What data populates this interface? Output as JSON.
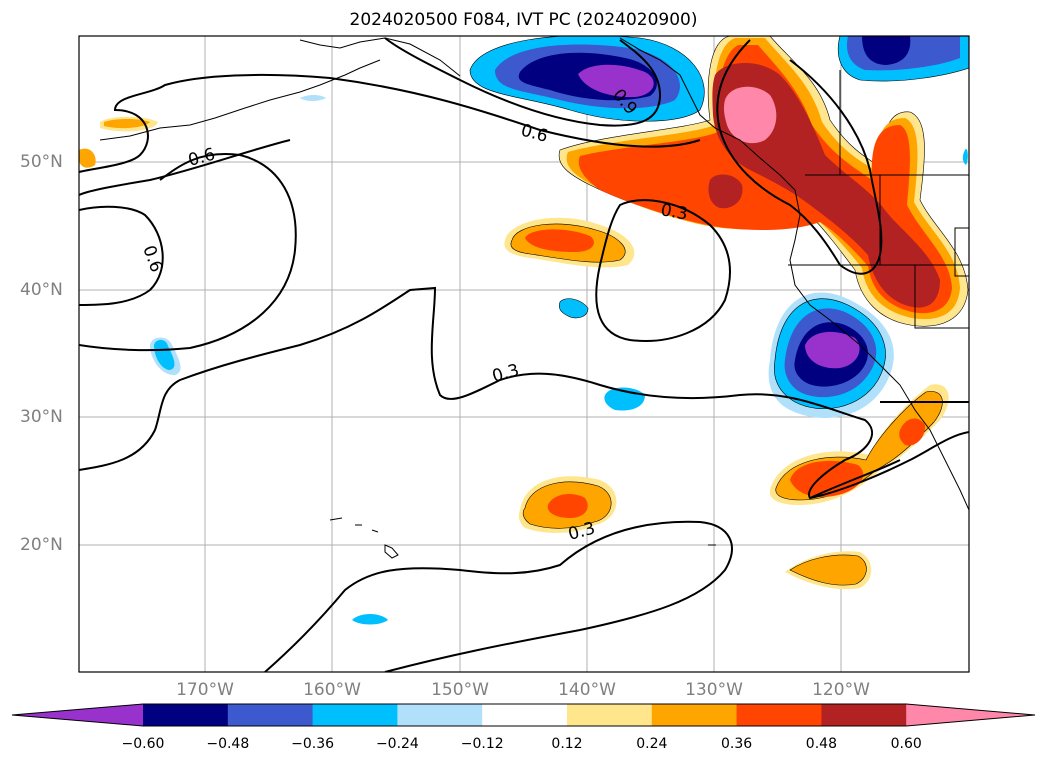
{
  "title": "2024020500 F084, IVT PC (2024020900)",
  "lat_labels": [
    "50°N",
    "40°N",
    "30°N",
    "20°N"
  ],
  "lon_labels": [
    "170°W",
    "160°W",
    "150°W",
    "140°W",
    "130°W",
    "120°W"
  ],
  "colorbar": {
    "ticks": [
      "−0.60",
      "−0.48",
      "−0.36",
      "−0.24",
      "−0.12",
      "0.12",
      "0.24",
      "0.36",
      "0.48",
      "0.60"
    ],
    "colors": [
      "#9932cc",
      "#000080",
      "#3c5acd",
      "#00bfff",
      "#b0e0fa",
      "#ffffff",
      "#ffe68c",
      "#ffa500",
      "#ff4500",
      "#b22222",
      "#ff88aa"
    ]
  },
  "contour_labels": [
    "0.6",
    "0.6",
    "0.6",
    "0.3",
    "0.3",
    "0.3",
    "0.9"
  ]
}
